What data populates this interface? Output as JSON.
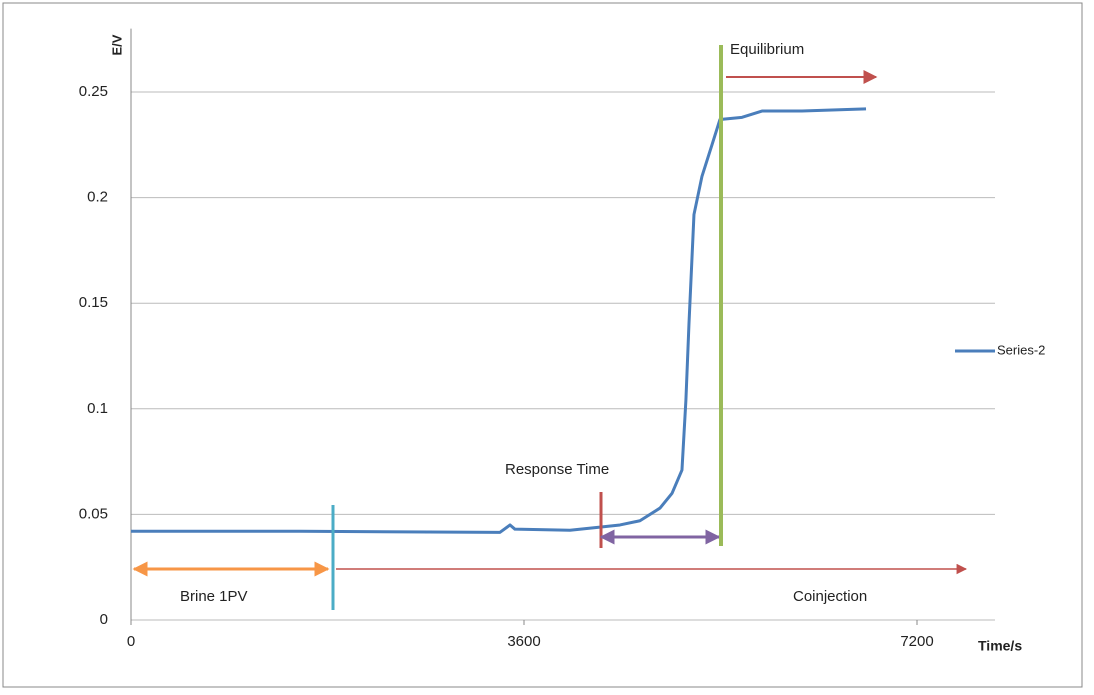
{
  "chart_data": {
    "type": "line",
    "y_label": "E/V",
    "x_label": "Time/s",
    "x": [
      0,
      1548,
      3380,
      3472,
      3517,
      4021,
      4296,
      4479,
      4662,
      4846,
      4956,
      5047,
      5083,
      5111,
      5157,
      5230,
      5322,
      5395,
      5597,
      5780,
      6146,
      6733
    ],
    "series": [
      {
        "name": "Series-2",
        "color": "#4a7ebb",
        "values": [
          0.042,
          0.042,
          0.0415,
          0.045,
          0.043,
          0.0425,
          0.044,
          0.045,
          0.047,
          0.053,
          0.06,
          0.071,
          0.104,
          0.14,
          0.192,
          0.21,
          0.225,
          0.237,
          0.238,
          0.241,
          0.241,
          0.242
        ]
      }
    ],
    "xlim": [
      0,
      7900
    ],
    "xticks": [
      0,
      3600,
      7200
    ],
    "ylim": [
      0,
      0.28
    ],
    "yticks": [
      0,
      0.05,
      0.1,
      0.15,
      0.2,
      0.25
    ],
    "grid": true,
    "annotations": [
      "Equilibrium",
      "Response Time",
      "Brine 1PV",
      "Coinjection"
    ]
  }
}
